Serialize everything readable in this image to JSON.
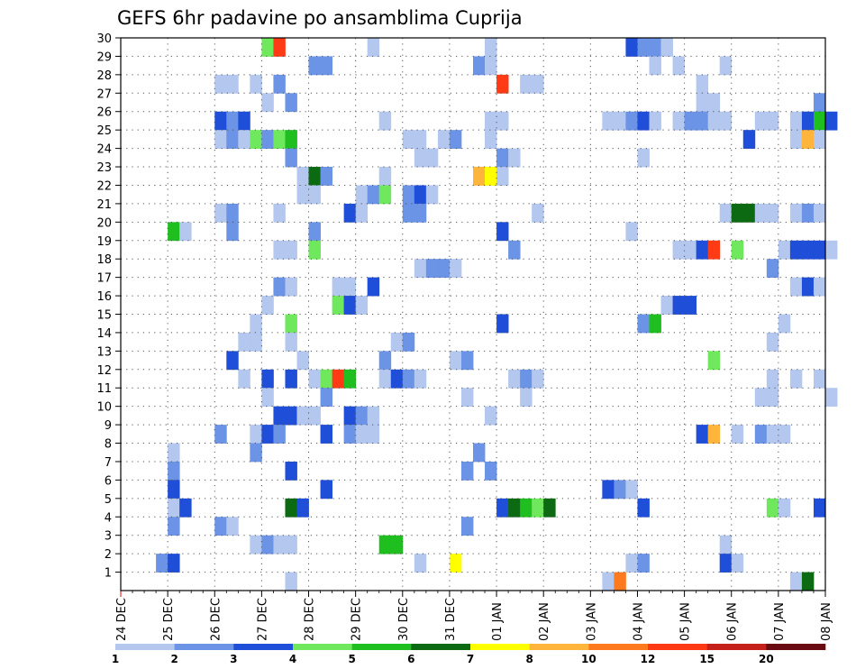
{
  "chart_data": {
    "type": "heatmap",
    "title": "GEFS 6hr padavine po ansamblima Cuprija",
    "xlabel": "",
    "ylabel": "",
    "x_ticks": [
      "24 DEC",
      "25 DEC",
      "26 DEC",
      "27 DEC",
      "28 DEC",
      "29 DEC",
      "30 DEC",
      "31 DEC",
      "01 JAN",
      "02 JAN",
      "03 JAN",
      "04 JAN",
      "05 JAN",
      "06 JAN",
      "07 JAN",
      "08 JAN"
    ],
    "xlim": [
      "24 DEC 00",
      "08 JAN 00"
    ],
    "y_ticks": [
      1,
      2,
      3,
      4,
      5,
      6,
      7,
      8,
      9,
      10,
      11,
      12,
      13,
      14,
      15,
      16,
      17,
      18,
      19,
      20,
      21,
      22,
      23,
      24,
      25,
      26,
      27,
      28,
      29,
      30
    ],
    "ylim": [
      0,
      30
    ],
    "grid": true,
    "legend": {
      "position": "bottom",
      "labels": [
        "1",
        "2",
        "3",
        "4",
        "5",
        "6",
        "7",
        "8",
        "10",
        "12",
        "15",
        "20"
      ],
      "colors": [
        "#b4c7ef",
        "#6b93e6",
        "#1f4ed8",
        "#6fe85d",
        "#1fbf1f",
        "#0c6b12",
        "#ffff00",
        "#ffb43c",
        "#ff7a1f",
        "#ff3a14",
        "#c6201b",
        "#6a0b12"
      ]
    },
    "cells_note": "each cell: member (y), time step index in 6h units from 24 DEC 00 (t), precipitation class index (c, 0-based into legend colors)",
    "cells": [
      {
        "y": 30,
        "t": 12,
        "c": 3
      },
      {
        "y": 30,
        "t": 13,
        "c": 9
      },
      {
        "y": 30,
        "t": 21,
        "c": 0
      },
      {
        "y": 30,
        "t": 31,
        "c": 0
      },
      {
        "y": 30,
        "t": 43,
        "c": 2
      },
      {
        "y": 30,
        "t": 44,
        "c": 1
      },
      {
        "y": 30,
        "t": 45,
        "c": 1
      },
      {
        "y": 30,
        "t": 46,
        "c": 0
      },
      {
        "y": 29,
        "t": 16,
        "c": 1
      },
      {
        "y": 29,
        "t": 17,
        "c": 1
      },
      {
        "y": 29,
        "t": 30,
        "c": 1
      },
      {
        "y": 29,
        "t": 31,
        "c": 0
      },
      {
        "y": 29,
        "t": 45,
        "c": 0
      },
      {
        "y": 29,
        "t": 47,
        "c": 0
      },
      {
        "y": 29,
        "t": 51,
        "c": 0
      },
      {
        "y": 28,
        "t": 8,
        "c": 0
      },
      {
        "y": 28,
        "t": 9,
        "c": 0
      },
      {
        "y": 28,
        "t": 11,
        "c": 0
      },
      {
        "y": 28,
        "t": 13,
        "c": 1
      },
      {
        "y": 28,
        "t": 32,
        "c": 9
      },
      {
        "y": 28,
        "t": 34,
        "c": 0
      },
      {
        "y": 28,
        "t": 35,
        "c": 0
      },
      {
        "y": 28,
        "t": 49,
        "c": 0
      },
      {
        "y": 27,
        "t": 12,
        "c": 0
      },
      {
        "y": 27,
        "t": 14,
        "c": 1
      },
      {
        "y": 27,
        "t": 49,
        "c": 0
      },
      {
        "y": 27,
        "t": 50,
        "c": 0
      },
      {
        "y": 27,
        "t": 59,
        "c": 1
      },
      {
        "y": 26,
        "t": 8,
        "c": 2
      },
      {
        "y": 26,
        "t": 9,
        "c": 1
      },
      {
        "y": 26,
        "t": 10,
        "c": 2
      },
      {
        "y": 26,
        "t": 22,
        "c": 0
      },
      {
        "y": 26,
        "t": 31,
        "c": 0
      },
      {
        "y": 26,
        "t": 32,
        "c": 0
      },
      {
        "y": 26,
        "t": 41,
        "c": 0
      },
      {
        "y": 26,
        "t": 42,
        "c": 0
      },
      {
        "y": 26,
        "t": 43,
        "c": 1
      },
      {
        "y": 26,
        "t": 44,
        "c": 2
      },
      {
        "y": 26,
        "t": 45,
        "c": 0
      },
      {
        "y": 26,
        "t": 47,
        "c": 0
      },
      {
        "y": 26,
        "t": 48,
        "c": 1
      },
      {
        "y": 26,
        "t": 49,
        "c": 1
      },
      {
        "y": 26,
        "t": 50,
        "c": 0
      },
      {
        "y": 26,
        "t": 51,
        "c": 0
      },
      {
        "y": 26,
        "t": 54,
        "c": 0
      },
      {
        "y": 26,
        "t": 55,
        "c": 0
      },
      {
        "y": 26,
        "t": 57,
        "c": 0
      },
      {
        "y": 26,
        "t": 58,
        "c": 2
      },
      {
        "y": 26,
        "t": 59,
        "c": 4
      },
      {
        "y": 26,
        "t": 60,
        "c": 2
      },
      {
        "y": 25,
        "t": 8,
        "c": 0
      },
      {
        "y": 25,
        "t": 9,
        "c": 1
      },
      {
        "y": 25,
        "t": 10,
        "c": 0
      },
      {
        "y": 25,
        "t": 11,
        "c": 3
      },
      {
        "y": 25,
        "t": 12,
        "c": 1
      },
      {
        "y": 25,
        "t": 13,
        "c": 3
      },
      {
        "y": 25,
        "t": 14,
        "c": 4
      },
      {
        "y": 25,
        "t": 24,
        "c": 0
      },
      {
        "y": 25,
        "t": 25,
        "c": 0
      },
      {
        "y": 25,
        "t": 27,
        "c": 0
      },
      {
        "y": 25,
        "t": 28,
        "c": 1
      },
      {
        "y": 25,
        "t": 31,
        "c": 0
      },
      {
        "y": 25,
        "t": 53,
        "c": 2
      },
      {
        "y": 25,
        "t": 57,
        "c": 0
      },
      {
        "y": 25,
        "t": 58,
        "c": 7
      },
      {
        "y": 25,
        "t": 59,
        "c": 0
      },
      {
        "y": 24,
        "t": 14,
        "c": 1
      },
      {
        "y": 24,
        "t": 25,
        "c": 0
      },
      {
        "y": 24,
        "t": 26,
        "c": 0
      },
      {
        "y": 24,
        "t": 32,
        "c": 1
      },
      {
        "y": 24,
        "t": 33,
        "c": 0
      },
      {
        "y": 24,
        "t": 44,
        "c": 0
      },
      {
        "y": 23,
        "t": 15,
        "c": 0
      },
      {
        "y": 23,
        "t": 16,
        "c": 5
      },
      {
        "y": 23,
        "t": 17,
        "c": 1
      },
      {
        "y": 23,
        "t": 22,
        "c": 0
      },
      {
        "y": 23,
        "t": 30,
        "c": 7
      },
      {
        "y": 23,
        "t": 31,
        "c": 6
      },
      {
        "y": 23,
        "t": 32,
        "c": 0
      },
      {
        "y": 22,
        "t": 15,
        "c": 0
      },
      {
        "y": 22,
        "t": 16,
        "c": 0
      },
      {
        "y": 22,
        "t": 20,
        "c": 0
      },
      {
        "y": 22,
        "t": 21,
        "c": 1
      },
      {
        "y": 22,
        "t": 22,
        "c": 3
      },
      {
        "y": 22,
        "t": 24,
        "c": 1
      },
      {
        "y": 22,
        "t": 25,
        "c": 2
      },
      {
        "y": 22,
        "t": 26,
        "c": 0
      },
      {
        "y": 21,
        "t": 8,
        "c": 0
      },
      {
        "y": 21,
        "t": 9,
        "c": 1
      },
      {
        "y": 21,
        "t": 13,
        "c": 0
      },
      {
        "y": 21,
        "t": 19,
        "c": 2
      },
      {
        "y": 21,
        "t": 20,
        "c": 0
      },
      {
        "y": 21,
        "t": 24,
        "c": 1
      },
      {
        "y": 21,
        "t": 25,
        "c": 1
      },
      {
        "y": 21,
        "t": 35,
        "c": 0
      },
      {
        "y": 21,
        "t": 51,
        "c": 0
      },
      {
        "y": 21,
        "t": 52,
        "c": 5
      },
      {
        "y": 21,
        "t": 53,
        "c": 5
      },
      {
        "y": 21,
        "t": 54,
        "c": 0
      },
      {
        "y": 21,
        "t": 55,
        "c": 0
      },
      {
        "y": 21,
        "t": 57,
        "c": 0
      },
      {
        "y": 21,
        "t": 58,
        "c": 1
      },
      {
        "y": 21,
        "t": 59,
        "c": 0
      },
      {
        "y": 20,
        "t": 4,
        "c": 4
      },
      {
        "y": 20,
        "t": 5,
        "c": 0
      },
      {
        "y": 20,
        "t": 9,
        "c": 1
      },
      {
        "y": 20,
        "t": 16,
        "c": 1
      },
      {
        "y": 20,
        "t": 32,
        "c": 2
      },
      {
        "y": 20,
        "t": 43,
        "c": 0
      },
      {
        "y": 19,
        "t": 13,
        "c": 0
      },
      {
        "y": 19,
        "t": 14,
        "c": 0
      },
      {
        "y": 19,
        "t": 16,
        "c": 3
      },
      {
        "y": 19,
        "t": 33,
        "c": 1
      },
      {
        "y": 19,
        "t": 47,
        "c": 0
      },
      {
        "y": 19,
        "t": 48,
        "c": 0
      },
      {
        "y": 19,
        "t": 49,
        "c": 2
      },
      {
        "y": 19,
        "t": 50,
        "c": 9
      },
      {
        "y": 19,
        "t": 52,
        "c": 3
      },
      {
        "y": 19,
        "t": 56,
        "c": 0
      },
      {
        "y": 19,
        "t": 57,
        "c": 2
      },
      {
        "y": 19,
        "t": 58,
        "c": 2
      },
      {
        "y": 19,
        "t": 59,
        "c": 2
      },
      {
        "y": 19,
        "t": 60,
        "c": 0
      },
      {
        "y": 18,
        "t": 25,
        "c": 0
      },
      {
        "y": 18,
        "t": 26,
        "c": 1
      },
      {
        "y": 18,
        "t": 27,
        "c": 1
      },
      {
        "y": 18,
        "t": 28,
        "c": 0
      },
      {
        "y": 18,
        "t": 55,
        "c": 1
      },
      {
        "y": 17,
        "t": 13,
        "c": 1
      },
      {
        "y": 17,
        "t": 14,
        "c": 0
      },
      {
        "y": 17,
        "t": 18,
        "c": 0
      },
      {
        "y": 17,
        "t": 19,
        "c": 0
      },
      {
        "y": 17,
        "t": 21,
        "c": 2
      },
      {
        "y": 17,
        "t": 57,
        "c": 0
      },
      {
        "y": 17,
        "t": 58,
        "c": 2
      },
      {
        "y": 17,
        "t": 59,
        "c": 0
      },
      {
        "y": 16,
        "t": 12,
        "c": 0
      },
      {
        "y": 16,
        "t": 18,
        "c": 3
      },
      {
        "y": 16,
        "t": 19,
        "c": 2
      },
      {
        "y": 16,
        "t": 20,
        "c": 0
      },
      {
        "y": 16,
        "t": 46,
        "c": 0
      },
      {
        "y": 16,
        "t": 47,
        "c": 2
      },
      {
        "y": 16,
        "t": 48,
        "c": 2
      },
      {
        "y": 15,
        "t": 11,
        "c": 0
      },
      {
        "y": 15,
        "t": 14,
        "c": 3
      },
      {
        "y": 15,
        "t": 32,
        "c": 2
      },
      {
        "y": 15,
        "t": 44,
        "c": 1
      },
      {
        "y": 15,
        "t": 45,
        "c": 4
      },
      {
        "y": 15,
        "t": 56,
        "c": 0
      },
      {
        "y": 14,
        "t": 10,
        "c": 0
      },
      {
        "y": 14,
        "t": 11,
        "c": 0
      },
      {
        "y": 14,
        "t": 14,
        "c": 0
      },
      {
        "y": 14,
        "t": 23,
        "c": 0
      },
      {
        "y": 14,
        "t": 24,
        "c": 1
      },
      {
        "y": 14,
        "t": 55,
        "c": 0
      },
      {
        "y": 13,
        "t": 9,
        "c": 2
      },
      {
        "y": 13,
        "t": 15,
        "c": 0
      },
      {
        "y": 13,
        "t": 22,
        "c": 1
      },
      {
        "y": 13,
        "t": 28,
        "c": 0
      },
      {
        "y": 13,
        "t": 29,
        "c": 1
      },
      {
        "y": 13,
        "t": 50,
        "c": 3
      },
      {
        "y": 12,
        "t": 10,
        "c": 0
      },
      {
        "y": 12,
        "t": 12,
        "c": 2
      },
      {
        "y": 12,
        "t": 14,
        "c": 2
      },
      {
        "y": 12,
        "t": 16,
        "c": 0
      },
      {
        "y": 12,
        "t": 17,
        "c": 3
      },
      {
        "y": 12,
        "t": 18,
        "c": 9
      },
      {
        "y": 12,
        "t": 19,
        "c": 4
      },
      {
        "y": 12,
        "t": 22,
        "c": 0
      },
      {
        "y": 12,
        "t": 23,
        "c": 2
      },
      {
        "y": 12,
        "t": 24,
        "c": 1
      },
      {
        "y": 12,
        "t": 25,
        "c": 0
      },
      {
        "y": 12,
        "t": 33,
        "c": 0
      },
      {
        "y": 12,
        "t": 34,
        "c": 1
      },
      {
        "y": 12,
        "t": 35,
        "c": 0
      },
      {
        "y": 12,
        "t": 55,
        "c": 0
      },
      {
        "y": 12,
        "t": 57,
        "c": 0
      },
      {
        "y": 12,
        "t": 59,
        "c": 0
      },
      {
        "y": 11,
        "t": 12,
        "c": 0
      },
      {
        "y": 11,
        "t": 17,
        "c": 1
      },
      {
        "y": 11,
        "t": 29,
        "c": 0
      },
      {
        "y": 11,
        "t": 34,
        "c": 0
      },
      {
        "y": 11,
        "t": 54,
        "c": 0
      },
      {
        "y": 11,
        "t": 55,
        "c": 0
      },
      {
        "y": 11,
        "t": 60,
        "c": 0
      },
      {
        "y": 10,
        "t": 13,
        "c": 2
      },
      {
        "y": 10,
        "t": 14,
        "c": 2
      },
      {
        "y": 10,
        "t": 15,
        "c": 0
      },
      {
        "y": 10,
        "t": 16,
        "c": 0
      },
      {
        "y": 10,
        "t": 19,
        "c": 2
      },
      {
        "y": 10,
        "t": 20,
        "c": 1
      },
      {
        "y": 10,
        "t": 21,
        "c": 0
      },
      {
        "y": 10,
        "t": 31,
        "c": 0
      },
      {
        "y": 9,
        "t": 8,
        "c": 1
      },
      {
        "y": 9,
        "t": 11,
        "c": 0
      },
      {
        "y": 9,
        "t": 12,
        "c": 2
      },
      {
        "y": 9,
        "t": 13,
        "c": 1
      },
      {
        "y": 9,
        "t": 17,
        "c": 2
      },
      {
        "y": 9,
        "t": 19,
        "c": 1
      },
      {
        "y": 9,
        "t": 20,
        "c": 0
      },
      {
        "y": 9,
        "t": 21,
        "c": 0
      },
      {
        "y": 9,
        "t": 49,
        "c": 2
      },
      {
        "y": 9,
        "t": 50,
        "c": 7
      },
      {
        "y": 9,
        "t": 52,
        "c": 0
      },
      {
        "y": 9,
        "t": 54,
        "c": 1
      },
      {
        "y": 9,
        "t": 55,
        "c": 0
      },
      {
        "y": 9,
        "t": 56,
        "c": 0
      },
      {
        "y": 8,
        "t": 4,
        "c": 0
      },
      {
        "y": 8,
        "t": 11,
        "c": 1
      },
      {
        "y": 8,
        "t": 30,
        "c": 1
      },
      {
        "y": 7,
        "t": 4,
        "c": 1
      },
      {
        "y": 7,
        "t": 14,
        "c": 2
      },
      {
        "y": 7,
        "t": 29,
        "c": 1
      },
      {
        "y": 7,
        "t": 31,
        "c": 1
      },
      {
        "y": 6,
        "t": 4,
        "c": 2
      },
      {
        "y": 6,
        "t": 17,
        "c": 2
      },
      {
        "y": 6,
        "t": 41,
        "c": 2
      },
      {
        "y": 6,
        "t": 42,
        "c": 1
      },
      {
        "y": 6,
        "t": 43,
        "c": 0
      },
      {
        "y": 5,
        "t": 4,
        "c": 0
      },
      {
        "y": 5,
        "t": 5,
        "c": 2
      },
      {
        "y": 5,
        "t": 14,
        "c": 5
      },
      {
        "y": 5,
        "t": 15,
        "c": 2
      },
      {
        "y": 5,
        "t": 32,
        "c": 2
      },
      {
        "y": 5,
        "t": 33,
        "c": 5
      },
      {
        "y": 5,
        "t": 34,
        "c": 4
      },
      {
        "y": 5,
        "t": 35,
        "c": 3
      },
      {
        "y": 5,
        "t": 36,
        "c": 5
      },
      {
        "y": 5,
        "t": 44,
        "c": 2
      },
      {
        "y": 5,
        "t": 55,
        "c": 3
      },
      {
        "y": 5,
        "t": 56,
        "c": 0
      },
      {
        "y": 5,
        "t": 59,
        "c": 2
      },
      {
        "y": 4,
        "t": 4,
        "c": 1
      },
      {
        "y": 4,
        "t": 8,
        "c": 1
      },
      {
        "y": 4,
        "t": 9,
        "c": 0
      },
      {
        "y": 4,
        "t": 29,
        "c": 1
      },
      {
        "y": 3,
        "t": 11,
        "c": 0
      },
      {
        "y": 3,
        "t": 12,
        "c": 1
      },
      {
        "y": 3,
        "t": 13,
        "c": 0
      },
      {
        "y": 3,
        "t": 14,
        "c": 0
      },
      {
        "y": 3,
        "t": 22,
        "c": 4
      },
      {
        "y": 3,
        "t": 23,
        "c": 4
      },
      {
        "y": 3,
        "t": 51,
        "c": 0
      },
      {
        "y": 2,
        "t": 3,
        "c": 1
      },
      {
        "y": 2,
        "t": 4,
        "c": 2
      },
      {
        "y": 2,
        "t": 25,
        "c": 0
      },
      {
        "y": 2,
        "t": 28,
        "c": 6
      },
      {
        "y": 2,
        "t": 43,
        "c": 0
      },
      {
        "y": 2,
        "t": 44,
        "c": 1
      },
      {
        "y": 2,
        "t": 51,
        "c": 2
      },
      {
        "y": 2,
        "t": 52,
        "c": 0
      },
      {
        "y": 1,
        "t": 14,
        "c": 0
      },
      {
        "y": 1,
        "t": 41,
        "c": 0
      },
      {
        "y": 1,
        "t": 42,
        "c": 8
      },
      {
        "y": 1,
        "t": 57,
        "c": 0
      },
      {
        "y": 1,
        "t": 58,
        "c": 5
      }
    ]
  }
}
